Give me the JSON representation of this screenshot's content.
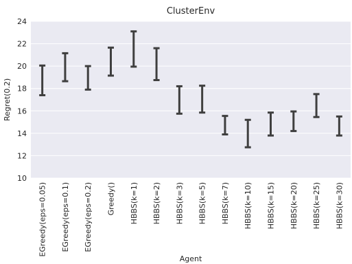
{
  "chart_data": {
    "type": "errorbar",
    "title": "ClusterEnv",
    "xlabel": "Agent",
    "ylabel": "Regret(0.2)",
    "ylim": [
      10,
      24
    ],
    "yticks": [
      10,
      12,
      14,
      16,
      18,
      20,
      22,
      24
    ],
    "grid": true,
    "colors": {
      "background": "#eaeaf2",
      "grid": "#ffffff",
      "bar": "#3f3f3f"
    },
    "categories": [
      "EGreedy(eps=0.05)",
      "EGreedy(eps=0.1)",
      "EGreedy(eps=0.2)",
      "Greedy()",
      "HBBS(k=1)",
      "HBBS(k=2)",
      "HBBS(k=3)",
      "HBBS(k=5)",
      "HBBS(k=7)",
      "HBBS(k=10)",
      "HBBS(k=15)",
      "HBBS(k=20)",
      "HBBS(k=25)",
      "HBBS(k=30)"
    ],
    "series": [
      {
        "lower": [
          17.4,
          18.65,
          17.9,
          19.15,
          19.95,
          18.75,
          15.75,
          15.85,
          13.9,
          12.75,
          13.8,
          14.2,
          15.45,
          13.8
        ],
        "upper": [
          20.05,
          21.15,
          20.0,
          21.65,
          23.1,
          21.6,
          18.2,
          18.25,
          15.55,
          15.2,
          15.85,
          15.95,
          17.5,
          15.5
        ]
      }
    ]
  }
}
